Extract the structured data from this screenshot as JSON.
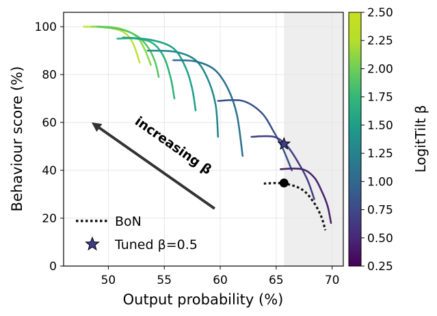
{
  "chart_data": {
    "type": "line",
    "xlabel": "Output probability (%)",
    "ylabel": "Behaviour score (%)",
    "xlim": [
      46,
      71
    ],
    "ylim": [
      0,
      106
    ],
    "xticks": [
      50,
      55,
      60,
      65,
      70
    ],
    "yticks": [
      0,
      20,
      40,
      60,
      80,
      100
    ],
    "grid": true,
    "shaded_region": {
      "x_from": 65.7,
      "x_to": 71,
      "color": "#eeeeee"
    },
    "colorbar": {
      "label": "LogitTilt β",
      "range": [
        0.25,
        2.5
      ],
      "ticks": [
        "0.25",
        "0.50",
        "0.75",
        "1.00",
        "1.25",
        "1.50",
        "1.75",
        "2.00",
        "2.25",
        "2.50"
      ],
      "colormap": "viridis"
    },
    "series": [
      {
        "beta": 2.5,
        "color": "#bde33b",
        "points": [
          [
            47.8,
            100
          ],
          [
            49.5,
            99.8
          ],
          [
            51.0,
            98.5
          ],
          [
            51.8,
            96
          ],
          [
            52.3,
            92
          ],
          [
            52.8,
            85
          ]
        ]
      },
      {
        "beta": 2.25,
        "color": "#8cd94c",
        "points": [
          [
            48.5,
            100
          ],
          [
            50.3,
            99.8
          ],
          [
            51.8,
            98
          ],
          [
            52.7,
            95
          ],
          [
            53.3,
            90
          ],
          [
            53.8,
            84
          ]
        ]
      },
      {
        "beta": 2.0,
        "color": "#57c665",
        "points": [
          [
            49.0,
            100
          ],
          [
            51.0,
            99
          ],
          [
            52.6,
            96
          ],
          [
            53.6,
            91
          ],
          [
            54.2,
            85
          ],
          [
            54.5,
            79
          ]
        ]
      },
      {
        "beta": 1.75,
        "color": "#2fb37a",
        "points": [
          [
            50.8,
            95
          ],
          [
            52.5,
            95
          ],
          [
            54.0,
            93
          ],
          [
            55.0,
            87
          ],
          [
            55.6,
            78
          ],
          [
            55.9,
            70
          ]
        ]
      },
      {
        "beta": 1.5,
        "color": "#1fa187",
        "points": [
          [
            51.3,
            95.5
          ],
          [
            53.8,
            94.5
          ],
          [
            55.8,
            91
          ],
          [
            56.9,
            83
          ],
          [
            57.5,
            74
          ],
          [
            57.8,
            65
          ]
        ]
      },
      {
        "beta": 1.25,
        "color": "#23888e",
        "points": [
          [
            53.5,
            90
          ],
          [
            56.0,
            89.5
          ],
          [
            57.8,
            86
          ],
          [
            58.9,
            78
          ],
          [
            59.6,
            67
          ],
          [
            59.8,
            54
          ]
        ]
      },
      {
        "beta": 1.125,
        "color": "#2c728e",
        "points": [
          [
            55.8,
            86
          ],
          [
            57.8,
            85.5
          ],
          [
            59.5,
            82
          ],
          [
            60.7,
            74
          ],
          [
            61.5,
            63
          ],
          [
            62.0,
            46
          ]
        ]
      },
      {
        "beta": 0.875,
        "color": "#3b528b",
        "points": [
          [
            59.8,
            69
          ],
          [
            62.0,
            69
          ],
          [
            63.7,
            64
          ],
          [
            64.8,
            56
          ],
          [
            65.6,
            49
          ],
          [
            66.4,
            40
          ]
        ]
      },
      {
        "beta": 0.625,
        "color": "#433e85",
        "points": [
          [
            62.8,
            54
          ],
          [
            64.8,
            54
          ],
          [
            66.0,
            50
          ],
          [
            67.0,
            43
          ],
          [
            67.8,
            36
          ],
          [
            68.4,
            28
          ]
        ]
      },
      {
        "beta": 0.375,
        "color": "#46246b",
        "points": [
          [
            65.4,
            40.5
          ],
          [
            67.3,
            40.5
          ],
          [
            68.4,
            37
          ],
          [
            69.1,
            31
          ],
          [
            69.6,
            25
          ],
          [
            69.9,
            18
          ]
        ]
      }
    ],
    "bon": {
      "name": "BoN",
      "points": [
        [
          63.9,
          34.5
        ],
        [
          65.7,
          34.5
        ],
        [
          67.3,
          32
        ],
        [
          68.3,
          27
        ],
        [
          69.0,
          21
        ],
        [
          69.4,
          15
        ]
      ]
    },
    "bon_marker": [
      65.7,
      34.7
    ],
    "tuned": {
      "name": "Tuned β=0.5",
      "x": 65.7,
      "y": 51,
      "color": "#3f3d8a"
    },
    "annotation": {
      "text": "increasing β",
      "arrow_from": [
        59.5,
        24
      ],
      "arrow_to": [
        48.5,
        60
      ]
    },
    "legend": {
      "position": "lower-left"
    }
  }
}
